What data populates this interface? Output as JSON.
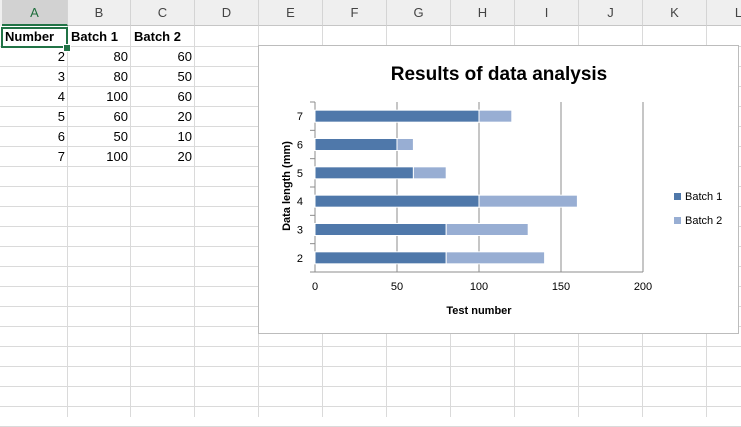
{
  "sheet": {
    "columns": [
      "A",
      "B",
      "C",
      "D",
      "E",
      "F",
      "G",
      "H",
      "I",
      "J",
      "K",
      "L"
    ],
    "selected_column": "A",
    "rows": [
      [
        "Number",
        "Batch 1",
        "Batch 2"
      ],
      [
        "2",
        "80",
        "60"
      ],
      [
        "3",
        "80",
        "50"
      ],
      [
        "4",
        "100",
        "60"
      ],
      [
        "5",
        "60",
        "20"
      ],
      [
        "6",
        "50",
        "10"
      ],
      [
        "7",
        "100",
        "20"
      ]
    ]
  },
  "chart_data": {
    "type": "bar",
    "orientation": "horizontal",
    "stacked": true,
    "title": "Results of data analysis",
    "xlabel": "Test number",
    "ylabel": "Data length (mm)",
    "categories": [
      "2",
      "3",
      "4",
      "5",
      "6",
      "7"
    ],
    "series": [
      {
        "name": "Batch 1",
        "values": [
          80,
          80,
          100,
          60,
          50,
          100
        ],
        "color": "#4f78aa"
      },
      {
        "name": "Batch 2",
        "values": [
          60,
          50,
          60,
          20,
          10,
          20
        ],
        "color": "#98aed3"
      }
    ],
    "xlim": [
      0,
      200
    ],
    "xticks": [
      "0",
      "50",
      "100",
      "150",
      "200"
    ],
    "grid": "vertical",
    "legend": "right"
  }
}
